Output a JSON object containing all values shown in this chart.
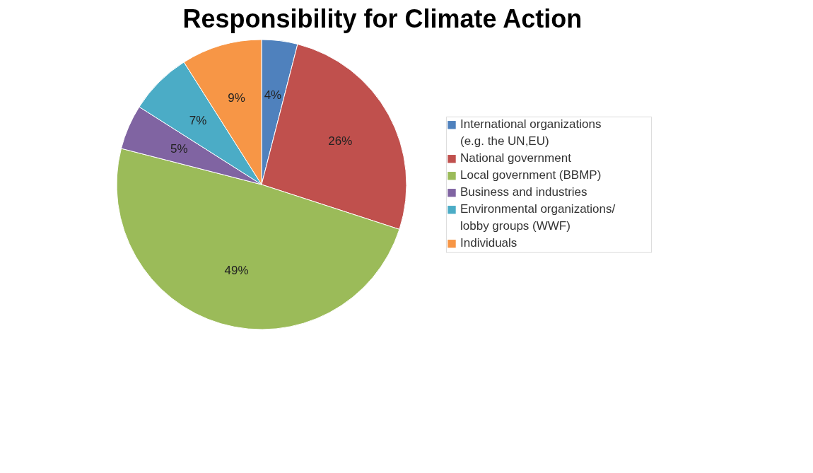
{
  "chart_data": {
    "type": "pie",
    "title": "Responsibility for Climate Action",
    "categories": [
      "International organizations (e.g. the UN,EU)",
      "National government",
      "Local government (BBMP)",
      "Business and industries",
      "Environmental organizations/ lobby groups (WWF)",
      "Individuals"
    ],
    "values": [
      4,
      26,
      49,
      5,
      7,
      9
    ],
    "value_labels": [
      "4%",
      "26%",
      "49%",
      "5%",
      "7%",
      "9%"
    ],
    "colors": [
      "#4f81bd",
      "#c0504d",
      "#9bbb59",
      "#8064a2",
      "#4bacc6",
      "#f79646"
    ],
    "legend": "right"
  }
}
